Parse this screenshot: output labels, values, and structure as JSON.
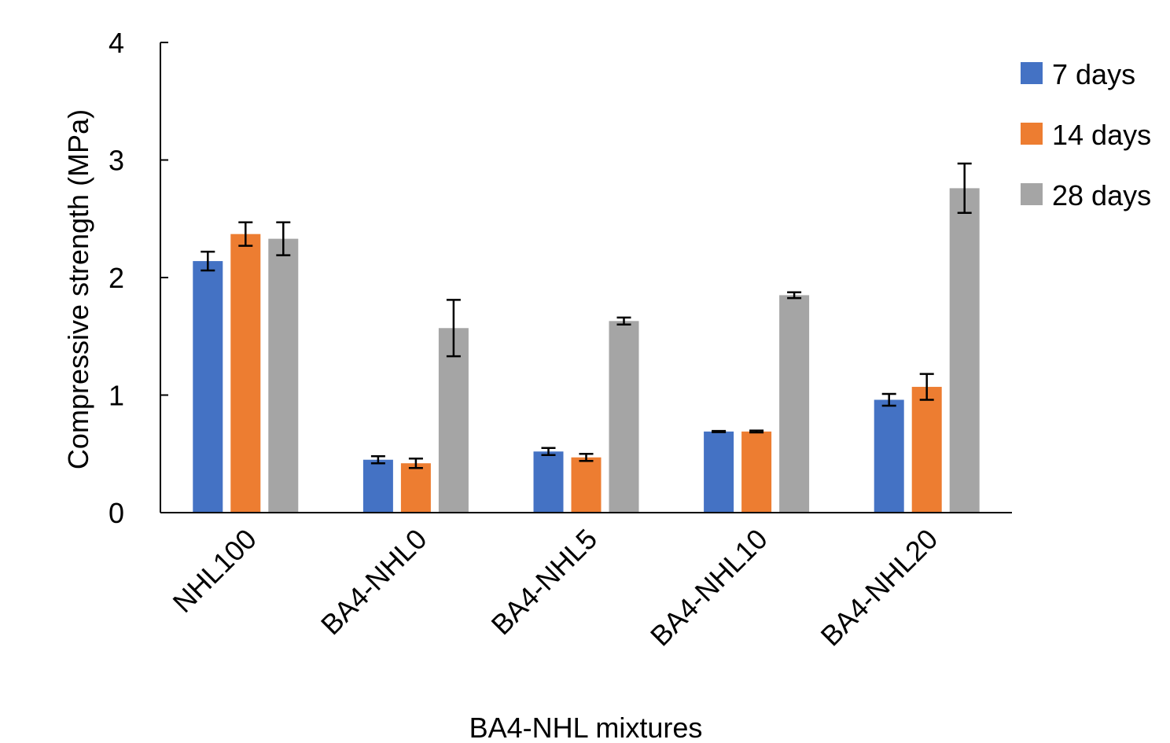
{
  "chart_data": {
    "type": "bar",
    "title": "",
    "xlabel": "BA4-NHL mixtures",
    "ylabel": "Compressive strength (MPa)",
    "ylim": [
      0,
      4
    ],
    "yticks": [
      "0",
      "1",
      "2",
      "3",
      "4"
    ],
    "grid": false,
    "legend_position": "top-right",
    "categories": [
      "NHL100",
      "BA4-NHL0",
      "BA4-NHL5",
      "BA4-NHL10",
      "BA4-NHL20"
    ],
    "series": [
      {
        "name": "7 days",
        "color": "#4472C4",
        "values": [
          2.14,
          0.45,
          0.52,
          0.69,
          0.96
        ],
        "errors": [
          0.08,
          0.03,
          0.03,
          0.005,
          0.05
        ]
      },
      {
        "name": "14 days",
        "color": "#ED7D31",
        "values": [
          2.37,
          0.42,
          0.47,
          0.69,
          1.07
        ],
        "errors": [
          0.1,
          0.04,
          0.03,
          0.008,
          0.11
        ]
      },
      {
        "name": "28 days",
        "color": "#A5A5A5",
        "values": [
          2.33,
          1.57,
          1.63,
          1.85,
          2.76
        ],
        "errors": [
          0.14,
          0.24,
          0.03,
          0.025,
          0.21
        ]
      }
    ]
  }
}
